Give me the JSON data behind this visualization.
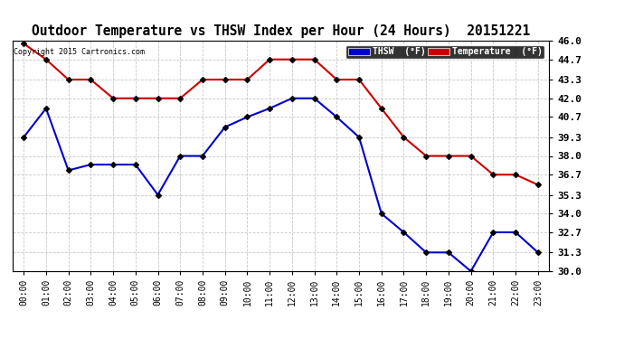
{
  "title": "Outdoor Temperature vs THSW Index per Hour (24 Hours)  20151221",
  "copyright": "Copyright 2015 Cartronics.com",
  "x_labels": [
    "00:00",
    "01:00",
    "02:00",
    "03:00",
    "04:00",
    "05:00",
    "06:00",
    "07:00",
    "08:00",
    "09:00",
    "10:00",
    "11:00",
    "12:00",
    "13:00",
    "14:00",
    "15:00",
    "16:00",
    "17:00",
    "18:00",
    "19:00",
    "20:00",
    "21:00",
    "22:00",
    "23:00"
  ],
  "thsw": [
    39.3,
    41.3,
    37.0,
    37.4,
    37.4,
    37.4,
    35.3,
    38.0,
    38.0,
    40.0,
    40.7,
    41.3,
    42.0,
    42.0,
    40.7,
    39.3,
    34.0,
    32.7,
    31.3,
    31.3,
    30.0,
    32.7,
    32.7,
    31.3
  ],
  "temperature": [
    45.8,
    44.7,
    43.3,
    43.3,
    42.0,
    42.0,
    42.0,
    42.0,
    43.3,
    43.3,
    43.3,
    44.7,
    44.7,
    44.7,
    43.3,
    43.3,
    41.3,
    39.3,
    38.0,
    38.0,
    38.0,
    36.7,
    36.7,
    36.0
  ],
  "ylim_min": 30.0,
  "ylim_max": 46.0,
  "yticks": [
    30.0,
    31.3,
    32.7,
    34.0,
    35.3,
    36.7,
    38.0,
    39.3,
    40.7,
    42.0,
    43.3,
    44.7,
    46.0
  ],
  "thsw_color": "#0000cc",
  "temp_color": "#cc0000",
  "bg_color": "#ffffff",
  "plot_bg_color": "#ffffff",
  "grid_color": "#bbbbbb",
  "legend_thsw_bg": "#0000cc",
  "legend_temp_bg": "#cc0000",
  "legend_thsw_label": "THSW  (°F)",
  "legend_temp_label": "Temperature  (°F)"
}
